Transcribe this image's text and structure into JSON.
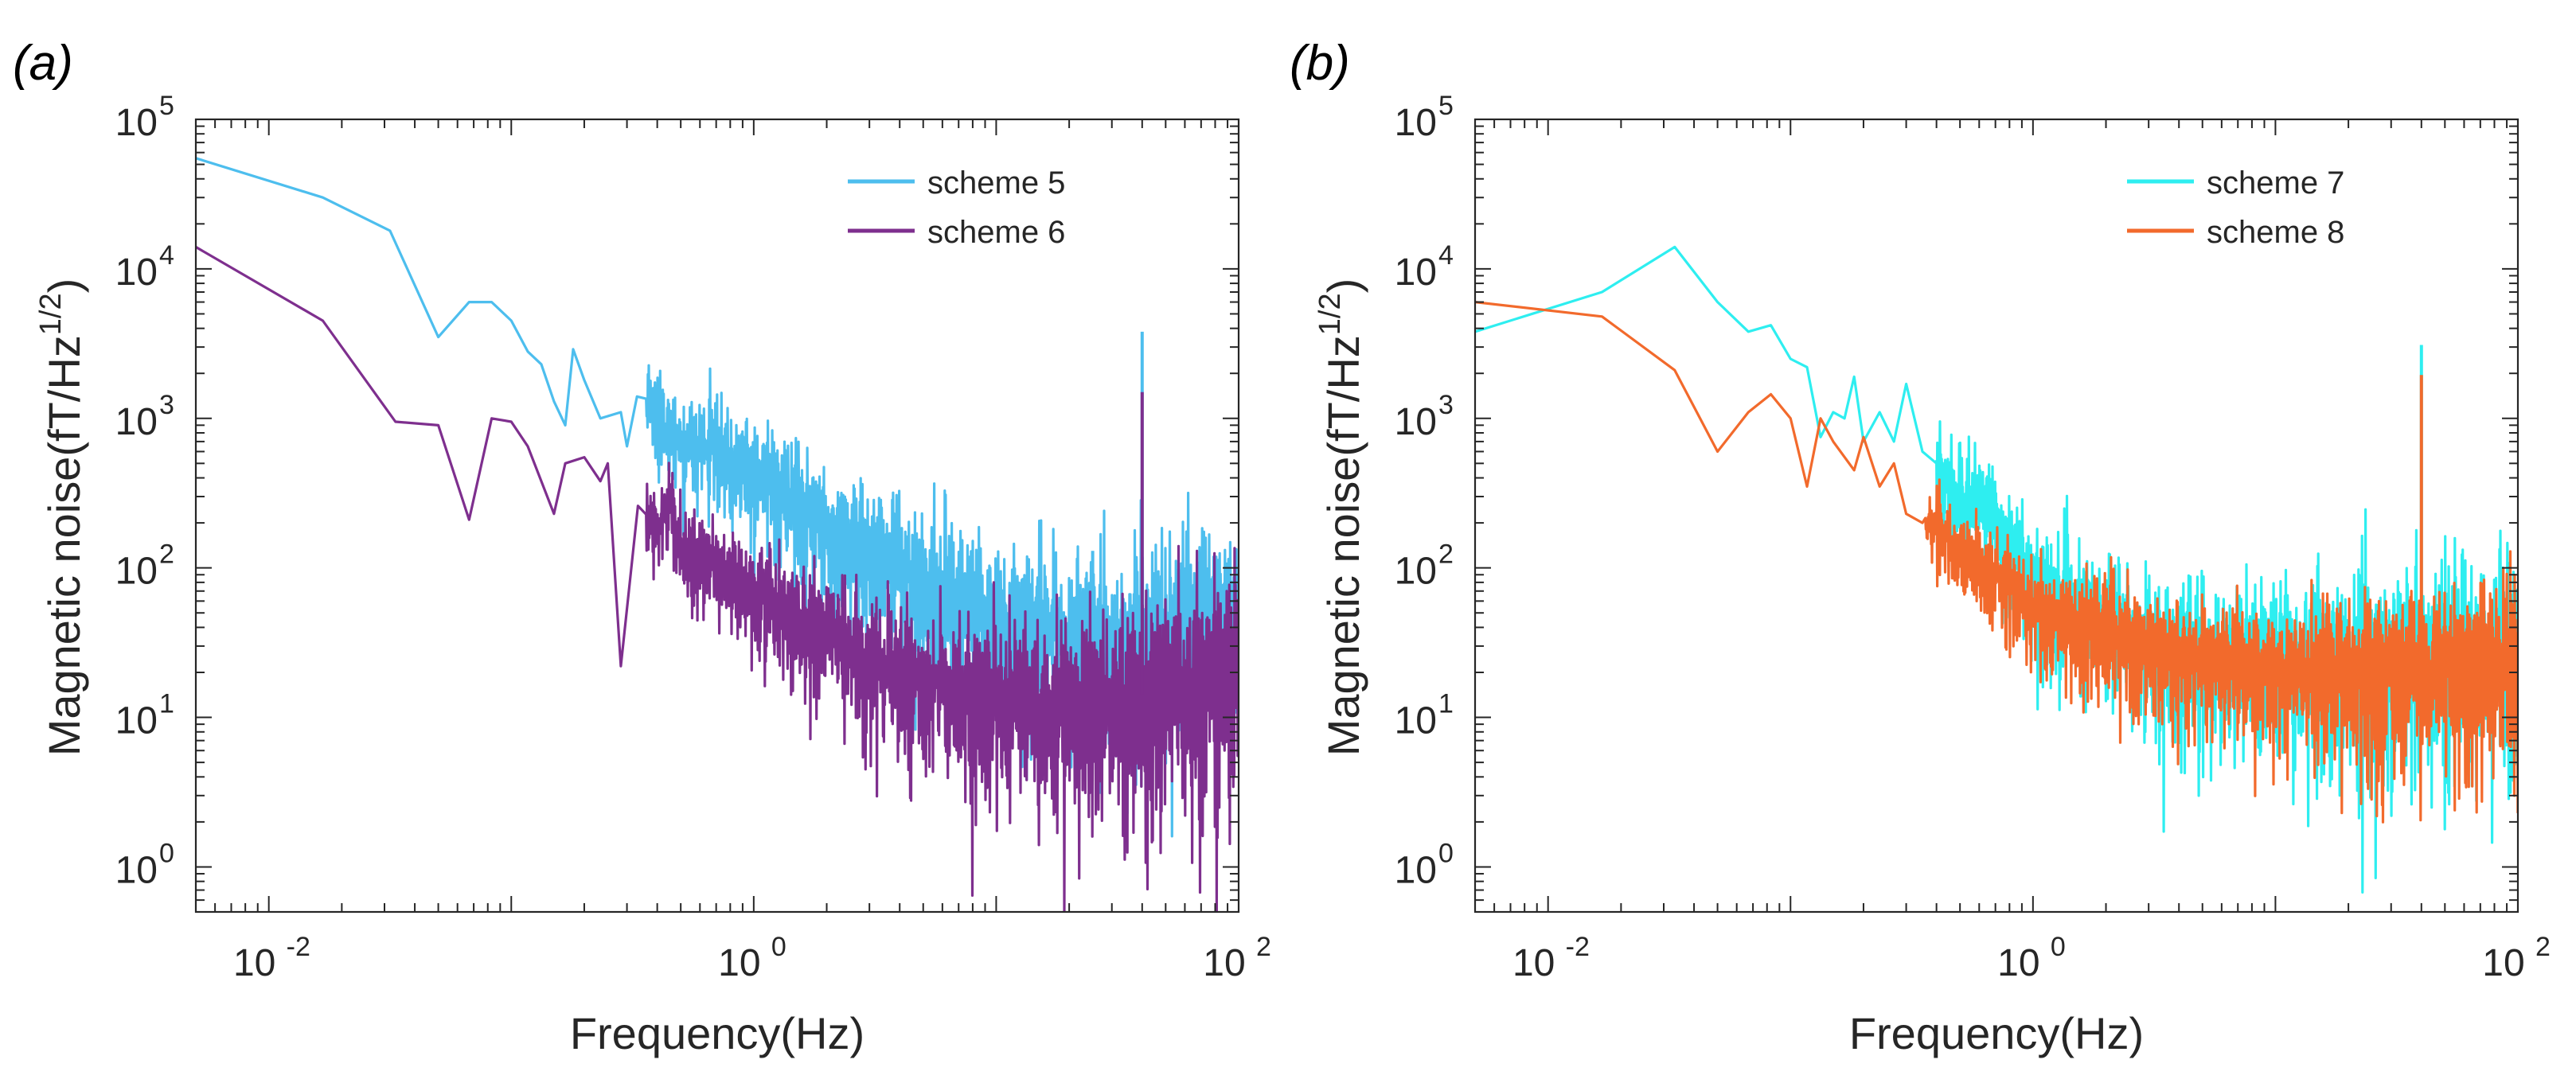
{
  "colors": {
    "scheme5": "#4DBEEE",
    "scheme6": "#7E2F8E",
    "scheme7": "#2EEEF0",
    "scheme8": "#F26A2C",
    "axis": "#262626"
  },
  "chart_data": [
    {
      "panel_label": "(a)",
      "type": "line",
      "scale": "loglog",
      "xlabel": "Frequency(Hz)",
      "ylabel_main": "Magnetic noise(fT/Hz",
      "ylabel_sup": "1/2",
      "ylabel_close": ")",
      "xlim": [
        0.005,
        100
      ],
      "ylim": [
        0.5,
        100000
      ],
      "xticks": [
        {
          "value": 0.01,
          "base": "10",
          "exp": "-2"
        },
        {
          "value": 1,
          "base": "10",
          "exp": "0"
        },
        {
          "value": 100,
          "base": "10",
          "exp": "2"
        }
      ],
      "yticks": [
        {
          "value": 1,
          "base": "10",
          "exp": "0"
        },
        {
          "value": 10,
          "base": "10",
          "exp": "1"
        },
        {
          "value": 100,
          "base": "10",
          "exp": "2"
        },
        {
          "value": 1000,
          "base": "10",
          "exp": "3"
        },
        {
          "value": 10000,
          "base": "10",
          "exp": "4"
        },
        {
          "value": 100000,
          "base": "10",
          "exp": "5"
        }
      ],
      "legend_position": "top-right",
      "series": [
        {
          "name": "scheme 5",
          "color_key": "scheme5",
          "anchors": [
            [
              0.005,
              55000
            ],
            [
              0.0167,
              30000
            ],
            [
              0.0316,
              18000
            ],
            [
              0.05,
              3500
            ],
            [
              0.067,
              6000
            ],
            [
              0.083,
              6000
            ],
            [
              0.1,
              4500
            ],
            [
              0.117,
              2800
            ],
            [
              0.133,
              2300
            ],
            [
              0.15,
              1300
            ],
            [
              0.167,
              900
            ],
            [
              0.18,
              2900
            ],
            [
              0.2,
              1800
            ],
            [
              0.233,
              1000
            ],
            [
              0.283,
              1100
            ],
            [
              0.3,
              650
            ],
            [
              0.33,
              1400
            ],
            [
              0.38,
              1200
            ],
            [
              0.45,
              800
            ],
            [
              0.6,
              700
            ],
            [
              0.8,
              550
            ],
            [
              1.0,
              500
            ],
            [
              1.5,
              300
            ],
            [
              2,
              200
            ],
            [
              3,
              140
            ],
            [
              5,
              80
            ],
            [
              10,
              50
            ],
            [
              15,
              40
            ],
            [
              25,
              35
            ],
            [
              40,
              38
            ],
            [
              70,
              50
            ],
            [
              100,
              60
            ]
          ],
          "noise_start": 0.36,
          "noise_amp": [
            0.35,
            0.55,
            0.7,
            0.85,
            1.0
          ],
          "spikes": [
            [
              25,
              130
            ],
            [
              40,
              3800
            ]
          ]
        },
        {
          "name": "scheme 6",
          "color_key": "scheme6",
          "anchors": [
            [
              0.005,
              14000
            ],
            [
              0.0167,
              4500
            ],
            [
              0.0333,
              950
            ],
            [
              0.05,
              900
            ],
            [
              0.067,
              210
            ],
            [
              0.083,
              1000
            ],
            [
              0.1,
              950
            ],
            [
              0.117,
              650
            ],
            [
              0.15,
              230
            ],
            [
              0.167,
              500
            ],
            [
              0.2,
              550
            ],
            [
              0.233,
              380
            ],
            [
              0.25,
              500
            ],
            [
              0.283,
              22
            ],
            [
              0.333,
              260
            ],
            [
              0.367,
              220
            ],
            [
              0.4,
              190
            ],
            [
              0.45,
              300
            ],
            [
              0.5,
              130
            ],
            [
              0.6,
              120
            ],
            [
              0.8,
              100
            ],
            [
              1,
              70
            ],
            [
              2,
              40
            ],
            [
              3,
              25
            ],
            [
              5,
              18
            ],
            [
              10,
              14
            ],
            [
              20,
              12
            ],
            [
              50,
              15
            ],
            [
              100,
              25
            ]
          ],
          "noise_start": 0.36,
          "noise_amp": [
            0.3,
            0.5,
            0.7,
            0.9,
            1.05
          ],
          "spikes": [
            [
              40,
              1500
            ]
          ]
        }
      ]
    },
    {
      "panel_label": "(b)",
      "type": "line",
      "scale": "loglog",
      "xlabel": "Frequency(Hz)",
      "ylabel_main": "Magnetic noise(fT/Hz",
      "ylabel_sup": "1/2",
      "ylabel_close": ")",
      "xlim": [
        0.005,
        100
      ],
      "ylim": [
        0.5,
        100000
      ],
      "xticks": [
        {
          "value": 0.01,
          "base": "10",
          "exp": "-2"
        },
        {
          "value": 1,
          "base": "10",
          "exp": "0"
        },
        {
          "value": 100,
          "base": "10",
          "exp": "2"
        }
      ],
      "yticks": [
        {
          "value": 1,
          "base": "10",
          "exp": "0"
        },
        {
          "value": 10,
          "base": "10",
          "exp": "1"
        },
        {
          "value": 100,
          "base": "10",
          "exp": "2"
        },
        {
          "value": 1000,
          "base": "10",
          "exp": "3"
        },
        {
          "value": 10000,
          "base": "10",
          "exp": "4"
        },
        {
          "value": 100000,
          "base": "10",
          "exp": "5"
        }
      ],
      "legend_position": "top-right",
      "series": [
        {
          "name": "scheme 7",
          "color_key": "scheme7",
          "anchors": [
            [
              0.005,
              3800
            ],
            [
              0.0167,
              7000
            ],
            [
              0.0333,
              14000
            ],
            [
              0.05,
              6000
            ],
            [
              0.067,
              3800
            ],
            [
              0.083,
              4200
            ],
            [
              0.1,
              2500
            ],
            [
              0.117,
              2200
            ],
            [
              0.133,
              750
            ],
            [
              0.15,
              1100
            ],
            [
              0.167,
              1000
            ],
            [
              0.183,
              1900
            ],
            [
              0.2,
              700
            ],
            [
              0.233,
              1100
            ],
            [
              0.267,
              700
            ],
            [
              0.3,
              1700
            ],
            [
              0.35,
              600
            ],
            [
              0.4,
              500
            ],
            [
              0.5,
              300
            ],
            [
              0.6,
              280
            ],
            [
              0.7,
              200
            ],
            [
              1,
              90
            ],
            [
              1.5,
              60
            ],
            [
              2,
              45
            ],
            [
              3,
              35
            ],
            [
              5,
              28
            ],
            [
              10,
              25
            ],
            [
              20,
              24
            ],
            [
              40,
              28
            ],
            [
              100,
              35
            ]
          ],
          "noise_start": 0.4,
          "noise_amp": [
            0.35,
            0.55,
            0.75,
            0.9,
            1.05
          ],
          "spikes": [
            [
              40,
              3100
            ]
          ]
        },
        {
          "name": "scheme 8",
          "color_key": "scheme8",
          "anchors": [
            [
              0.005,
              6000
            ],
            [
              0.0167,
              4800
            ],
            [
              0.0333,
              2100
            ],
            [
              0.05,
              600
            ],
            [
              0.067,
              1100
            ],
            [
              0.083,
              1450
            ],
            [
              0.1,
              1000
            ],
            [
              0.117,
              350
            ],
            [
              0.133,
              1000
            ],
            [
              0.15,
              700
            ],
            [
              0.183,
              450
            ],
            [
              0.2,
              750
            ],
            [
              0.233,
              350
            ],
            [
              0.267,
              500
            ],
            [
              0.3,
              230
            ],
            [
              0.35,
              200
            ],
            [
              0.4,
              200
            ],
            [
              0.5,
              140
            ],
            [
              0.6,
              110
            ],
            [
              0.8,
              80
            ],
            [
              1,
              60
            ],
            [
              2,
              40
            ],
            [
              3,
              30
            ],
            [
              5,
              25
            ],
            [
              10,
              22
            ],
            [
              20,
              22
            ],
            [
              40,
              22
            ],
            [
              100,
              25
            ]
          ],
          "noise_start": 0.36,
          "noise_amp": [
            0.3,
            0.45,
            0.6,
            0.75,
            0.9
          ],
          "spikes": [
            [
              40,
              1950
            ]
          ]
        }
      ]
    }
  ]
}
